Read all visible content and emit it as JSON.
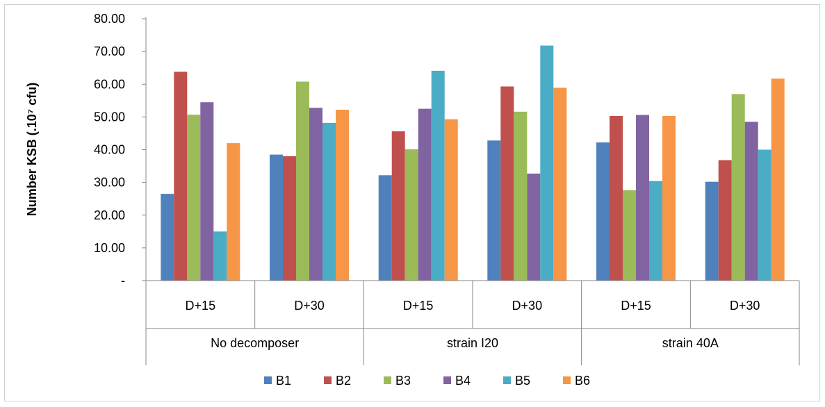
{
  "chart_data": {
    "type": "bar",
    "title": "",
    "xlabel": "",
    "ylabel": "Number KSB (.10⁷ cfu)",
    "ylim": [
      0,
      80
    ],
    "y_ticks": [
      0,
      10,
      20,
      30,
      40,
      50,
      60,
      70,
      80
    ],
    "y_tick_labels": [
      "-",
      "10.00",
      "20.00",
      "30.00",
      "40.00",
      "50.00",
      "60.00",
      "70.00",
      "80.00"
    ],
    "groups": [
      "No decomposer",
      "strain I20",
      "strain 40A"
    ],
    "subgroups": [
      "D+15",
      "D+30"
    ],
    "categories": [
      "No decomposer D+15",
      "No decomposer D+30",
      "strain I20 D+15",
      "strain I20 D+30",
      "strain 40A D+15",
      "strain 40A D+30"
    ],
    "series": [
      {
        "name": "B1",
        "color": "#4f81bd",
        "values": [
          26.5,
          38.5,
          32.2,
          42.8,
          42.2,
          30.2
        ]
      },
      {
        "name": "B2",
        "color": "#c0504d",
        "values": [
          63.8,
          38.0,
          45.6,
          59.3,
          50.3,
          36.8
        ]
      },
      {
        "name": "B3",
        "color": "#9bbb59",
        "values": [
          50.7,
          60.8,
          40.1,
          51.6,
          27.6,
          57.0
        ]
      },
      {
        "name": "B4",
        "color": "#8064a2",
        "values": [
          54.5,
          52.8,
          52.5,
          32.7,
          50.6,
          48.5
        ]
      },
      {
        "name": "B5",
        "color": "#4bacc6",
        "values": [
          15.0,
          48.2,
          64.1,
          71.8,
          30.4,
          40.0
        ]
      },
      {
        "name": "B6",
        "color": "#f79646",
        "values": [
          42.0,
          52.2,
          49.3,
          58.9,
          50.3,
          61.7
        ]
      }
    ],
    "grid": false,
    "legend_position": "bottom"
  }
}
